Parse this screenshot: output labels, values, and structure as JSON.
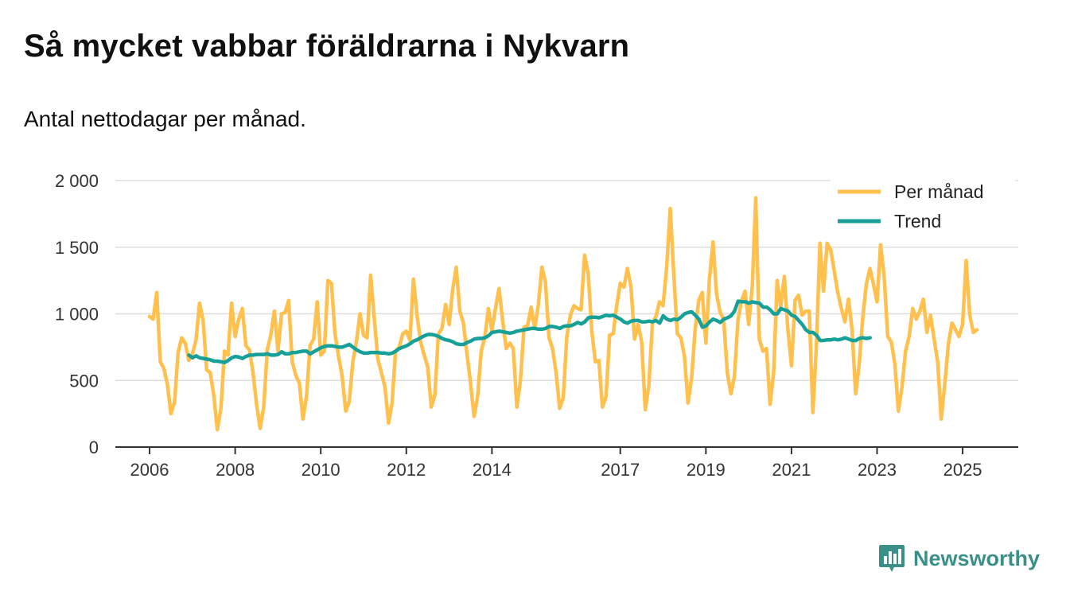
{
  "title": "Så mycket vabbar föräldrarna i Nykvarn",
  "subtitle": "Antal nettodagar per månad.",
  "brand": {
    "name": "Newsworthy",
    "icon": "bar-chart-badge-icon"
  },
  "colors": {
    "monthly": "#FFC04D",
    "trend": "#17A097",
    "grid": "#dddddd",
    "axis": "#333333",
    "brand": "#3a8f88"
  },
  "chart_data": {
    "type": "line",
    "title": "Så mycket vabbar föräldrarna i Nykvarn",
    "subtitle": "Antal nettodagar per månad.",
    "xlabel": "",
    "ylabel": "",
    "ylim": [
      0,
      2000
    ],
    "xlim": [
      2005.2,
      2026.3
    ],
    "yticks": [
      0,
      500,
      1000,
      1500,
      2000
    ],
    "ytick_labels": [
      "0",
      "500",
      "1 000",
      "1 500",
      "2 000"
    ],
    "xticks": [
      2006,
      2008,
      2010,
      2012,
      2014,
      2017,
      2019,
      2021,
      2023,
      2025
    ],
    "xtick_labels": [
      "2006",
      "2008",
      "2010",
      "2012",
      "2014",
      "2017",
      "2019",
      "2021",
      "2023",
      "2025"
    ],
    "legend": {
      "position": "top-right",
      "entries": [
        "Per månad",
        "Trend"
      ]
    },
    "series": [
      {
        "name": "Per månad",
        "x_start": 2006.0,
        "step": 0.08333,
        "values": [
          980,
          960,
          1160,
          640,
          590,
          470,
          250,
          340,
          710,
          820,
          780,
          650,
          700,
          800,
          1080,
          950,
          580,
          560,
          390,
          130,
          290,
          720,
          690,
          1080,
          830,
          960,
          1040,
          760,
          730,
          560,
          320,
          140,
          300,
          730,
          840,
          1020,
          720,
          1000,
          1010,
          1100,
          640,
          540,
          480,
          210,
          380,
          760,
          810,
          1090,
          690,
          720,
          1250,
          1230,
          850,
          680,
          530,
          270,
          340,
          640,
          790,
          1000,
          840,
          820,
          1290,
          970,
          660,
          560,
          450,
          180,
          330,
          720,
          750,
          850,
          870,
          800,
          1260,
          990,
          790,
          690,
          600,
          300,
          390,
          850,
          890,
          1070,
          920,
          1180,
          1350,
          1020,
          930,
          700,
          480,
          230,
          380,
          720,
          820,
          1040,
          870,
          1040,
          1190,
          950,
          740,
          780,
          740,
          300,
          500,
          900,
          910,
          1050,
          890,
          1060,
          1350,
          1240,
          820,
          740,
          560,
          290,
          370,
          830,
          990,
          1060,
          1040,
          1030,
          1440,
          1300,
          870,
          640,
          650,
          300,
          380,
          840,
          850,
          1060,
          1230,
          1200,
          1340,
          1200,
          810,
          920,
          790,
          280,
          460,
          930,
          980,
          1090,
          1060,
          1350,
          1790,
          1290,
          850,
          820,
          680,
          330,
          520,
          880,
          1100,
          1160,
          780,
          1260,
          1540,
          1150,
          1010,
          960,
          560,
          400,
          530,
          950,
          1100,
          1170,
          920,
          1200,
          1870,
          810,
          720,
          740,
          320,
          560,
          1250,
          1050,
          1280,
          880,
          610,
          1100,
          1140,
          990,
          1020,
          1020,
          260,
          770,
          1530,
          1170,
          1530,
          1480,
          1320,
          1160,
          1040,
          940,
          1110,
          880,
          400,
          620,
          970,
          1220,
          1340,
          1220,
          1090,
          1520,
          1280,
          830,
          790,
          620,
          270,
          450,
          720,
          830,
          1040,
          960,
          1020,
          1110,
          860,
          990,
          810,
          640,
          210,
          470,
          770,
          930,
          880,
          830,
          920,
          1400,
          990,
          860,
          880
        ]
      },
      {
        "name": "Trend",
        "x_start": 2006.92,
        "step": 0.08333,
        "values": [
          690,
          670,
          685,
          670,
          665,
          660,
          655,
          645,
          645,
          640,
          635,
          650,
          670,
          680,
          675,
          665,
          680,
          690,
          690,
          695,
          695,
          695,
          700,
          690,
          690,
          695,
          715,
          700,
          700,
          710,
          710,
          715,
          720,
          720,
          700,
          715,
          730,
          745,
          755,
          760,
          760,
          755,
          750,
          750,
          760,
          770,
          750,
          730,
          715,
          705,
          705,
          710,
          710,
          710,
          705,
          705,
          700,
          705,
          720,
          740,
          750,
          760,
          775,
          795,
          805,
          820,
          835,
          845,
          845,
          840,
          830,
          815,
          805,
          800,
          790,
          775,
          770,
          770,
          785,
          795,
          810,
          815,
          815,
          820,
          835,
          860,
          865,
          870,
          865,
          860,
          855,
          860,
          870,
          875,
          880,
          885,
          890,
          890,
          885,
          885,
          890,
          905,
          905,
          900,
          890,
          905,
          910,
          910,
          920,
          935,
          925,
          940,
          970,
          975,
          975,
          970,
          980,
          990,
          985,
          990,
          975,
          960,
          940,
          930,
          945,
          950,
          950,
          940,
          940,
          945,
          940,
          950,
          930,
          985,
          960,
          950,
          960,
          955,
          975,
          1000,
          1010,
          1015,
          990,
          960,
          900,
          910,
          940,
          960,
          950,
          935,
          960,
          970,
          985,
          1020,
          1095,
          1090,
          1090,
          1080,
          1090,
          1085,
          1080,
          1050,
          1050,
          1030,
          1000,
          1000,
          1040,
          1030,
          1020,
          990,
          980,
          950,
          920,
          880,
          860,
          860,
          840,
          800,
          800,
          805,
          805,
          810,
          805,
          810,
          820,
          810,
          800,
          800,
          815,
          820,
          815,
          820
        ]
      }
    ]
  }
}
